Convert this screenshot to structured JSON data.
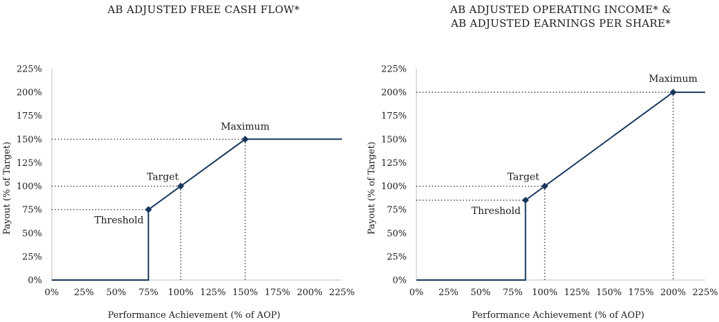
{
  "chart_data": [
    {
      "type": "line",
      "title_lines": [
        "AB ADJUSTED FREE CASH FLOW*"
      ],
      "xlabel": "Performance Achievement (% of AOP)",
      "ylabel": "Payout (% of Target)",
      "xlim": [
        0,
        225
      ],
      "ylim": [
        0,
        225
      ],
      "x_ticks": [
        "0%",
        "25%",
        "50%",
        "75%",
        "100%",
        "125%",
        "150%",
        "175%",
        "200%",
        "225%"
      ],
      "y_ticks": [
        "0%",
        "25%",
        "50%",
        "75%",
        "100%",
        "125%",
        "150%",
        "175%",
        "200%",
        "225%"
      ],
      "series": [
        {
          "x": [
            0,
            75,
            75,
            100,
            150,
            225
          ],
          "y": [
            0,
            0,
            75,
            100,
            150,
            150
          ]
        }
      ],
      "points": [
        {
          "label": "Threshold",
          "x": 75,
          "y": 75
        },
        {
          "label": "Target",
          "x": 100,
          "y": 100
        },
        {
          "label": "Maximum",
          "x": 150,
          "y": 150
        }
      ],
      "line_color": "#17365d",
      "grid": false
    },
    {
      "type": "line",
      "title_lines": [
        "AB ADJUSTED OPERATING INCOME* &",
        "AB ADJUSTED EARNINGS PER SHARE*"
      ],
      "xlabel": "Performance Achievement (% of AOP)",
      "ylabel": "Payout (% of Target)",
      "xlim": [
        0,
        225
      ],
      "ylim": [
        0,
        225
      ],
      "x_ticks": [
        "0%",
        "25%",
        "50%",
        "75%",
        "100%",
        "125%",
        "150%",
        "175%",
        "200%",
        "225%"
      ],
      "y_ticks": [
        "0%",
        "25%",
        "50%",
        "75%",
        "100%",
        "125%",
        "150%",
        "175%",
        "200%",
        "225%"
      ],
      "series": [
        {
          "x": [
            0,
            85,
            85,
            100,
            200,
            225
          ],
          "y": [
            0,
            0,
            85,
            100,
            200,
            200
          ]
        }
      ],
      "points": [
        {
          "label": "Threshold",
          "x": 85,
          "y": 85
        },
        {
          "label": "Target",
          "x": 100,
          "y": 100
        },
        {
          "label": "Maximum",
          "x": 200,
          "y": 200
        }
      ],
      "line_color": "#17365d",
      "grid": false
    }
  ]
}
